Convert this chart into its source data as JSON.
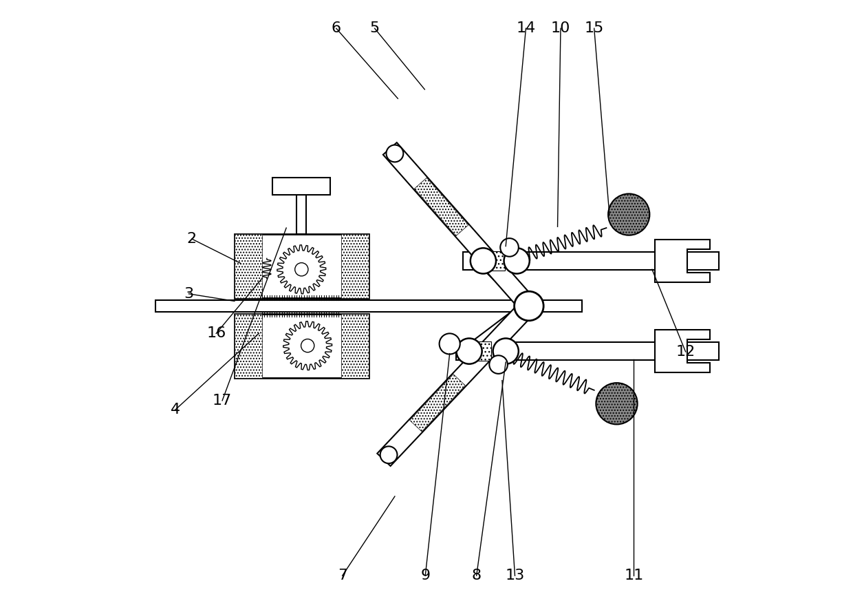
{
  "bg_color": "#ffffff",
  "line_color": "#000000",
  "fig_width": 12.4,
  "fig_height": 8.89,
  "dpi": 100
}
